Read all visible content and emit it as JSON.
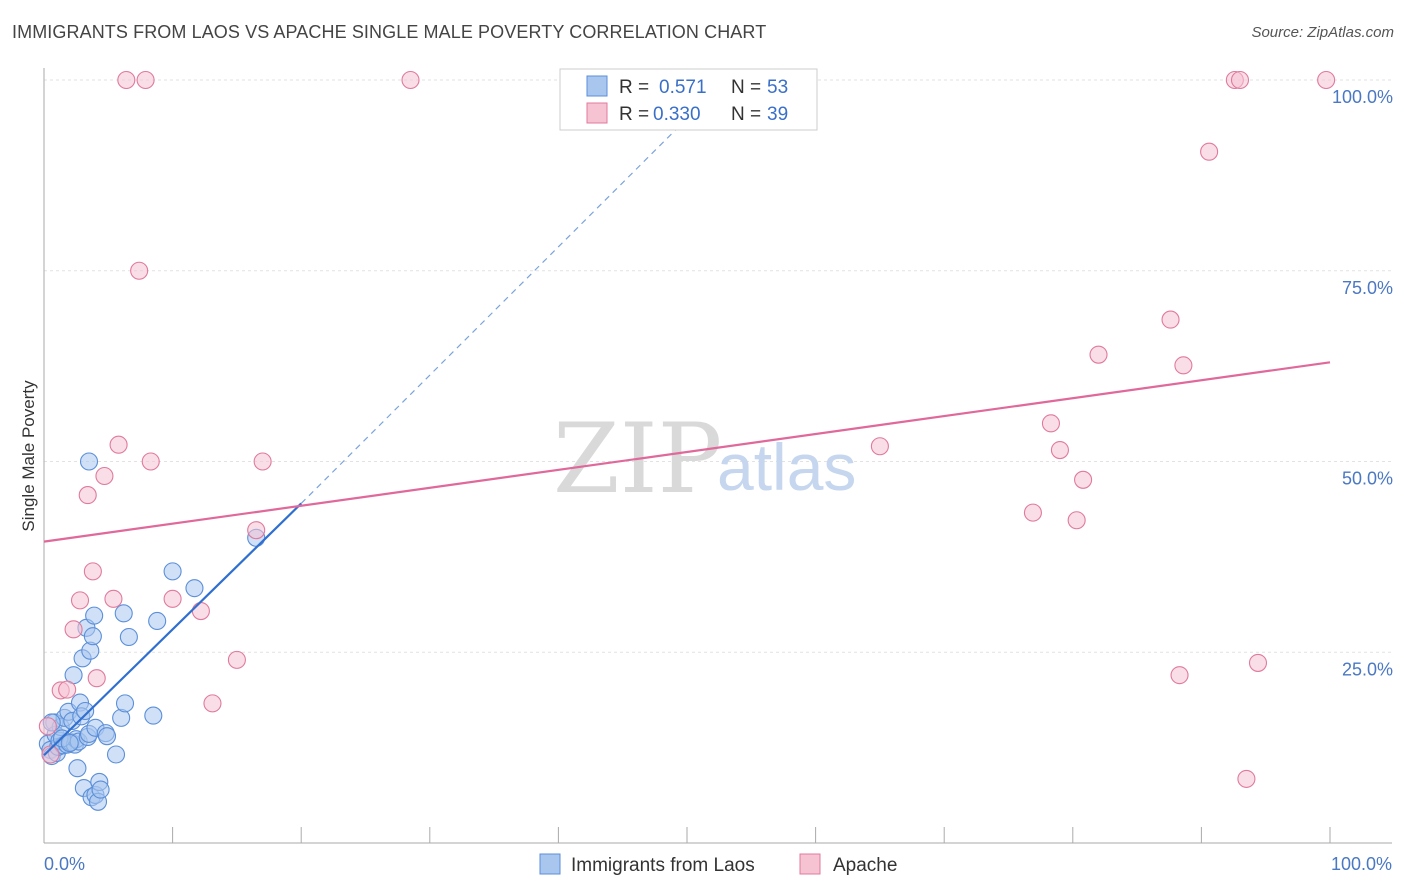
{
  "title": "IMMIGRANTS FROM LAOS VS APACHE SINGLE MALE POVERTY CORRELATION CHART",
  "source": "Source: ZipAtlas.com",
  "chart_data": {
    "type": "scatter",
    "ylabel": "Single Male Poverty",
    "xlim": [
      0,
      100
    ],
    "ylim": [
      0,
      100
    ],
    "x_tick_labels": [
      "0.0%",
      "100.0%"
    ],
    "y_ticks": [
      25,
      50,
      75,
      100
    ],
    "y_tick_labels": [
      "25.0%",
      "50.0%",
      "75.0%",
      "100.0%"
    ],
    "grid": true,
    "watermark": [
      "ZIP",
      "atlas"
    ],
    "legend": {
      "r_label": "R =",
      "n_label": "N =",
      "rows": [
        {
          "series": "Immigrants from Laos",
          "r": "0.571",
          "n": "53"
        },
        {
          "series": "Apache",
          "r": "0.330",
          "n": "39"
        }
      ]
    },
    "series": [
      {
        "name": "Immigrants from Laos",
        "color": "#5b8fd9",
        "fill": "#a9c6ee",
        "trend": {
          "x0": 0,
          "y0": 11.5,
          "x1": 20,
          "y1": 44.5,
          "dash_to_x": 53,
          "dash_to_y": 100
        },
        "points": [
          [
            0.3,
            13.0
          ],
          [
            0.5,
            12.2
          ],
          [
            0.6,
            11.4
          ],
          [
            0.8,
            15.8
          ],
          [
            0.9,
            14.2
          ],
          [
            1.0,
            11.8
          ],
          [
            1.1,
            12.6
          ],
          [
            1.2,
            13.4
          ],
          [
            1.3,
            15.2
          ],
          [
            1.5,
            12.8
          ],
          [
            1.6,
            16.4
          ],
          [
            1.8,
            12.9
          ],
          [
            1.9,
            17.2
          ],
          [
            2.1,
            13.2
          ],
          [
            2.2,
            16.0
          ],
          [
            2.3,
            22.0
          ],
          [
            2.4,
            12.9
          ],
          [
            2.5,
            13.6
          ],
          [
            2.6,
            9.8
          ],
          [
            2.7,
            13.3
          ],
          [
            2.8,
            18.4
          ],
          [
            2.9,
            16.6
          ],
          [
            3.0,
            24.2
          ],
          [
            3.1,
            7.2
          ],
          [
            3.2,
            17.3
          ],
          [
            3.3,
            28.2
          ],
          [
            3.4,
            13.9
          ],
          [
            3.5,
            14.3
          ],
          [
            3.6,
            25.2
          ],
          [
            3.7,
            6.0
          ],
          [
            3.8,
            27.1
          ],
          [
            3.9,
            29.8
          ],
          [
            4.0,
            15.1
          ],
          [
            3.5,
            50.0
          ],
          [
            4.0,
            6.3
          ],
          [
            4.2,
            5.4
          ],
          [
            4.3,
            8.0
          ],
          [
            4.4,
            7.0
          ],
          [
            4.8,
            14.4
          ],
          [
            4.9,
            14.0
          ],
          [
            5.6,
            11.6
          ],
          [
            6.0,
            16.4
          ],
          [
            6.2,
            30.1
          ],
          [
            6.3,
            18.3
          ],
          [
            6.6,
            27.0
          ],
          [
            8.5,
            16.7
          ],
          [
            8.8,
            29.1
          ],
          [
            10.0,
            35.6
          ],
          [
            11.7,
            33.4
          ],
          [
            16.5,
            40.0
          ],
          [
            0.6,
            15.8
          ],
          [
            1.4,
            13.7
          ],
          [
            2.0,
            13.1
          ]
        ]
      },
      {
        "name": "Apache",
        "color": "#e07a9c",
        "fill": "#f6c3d3",
        "trend": {
          "x0": 0,
          "y0": 39.5,
          "x1": 100,
          "y1": 63.0
        },
        "points": [
          [
            0.3,
            15.3
          ],
          [
            0.5,
            11.6
          ],
          [
            1.3,
            20.0
          ],
          [
            1.8,
            20.1
          ],
          [
            2.3,
            28.0
          ],
          [
            2.8,
            31.8
          ],
          [
            3.4,
            45.6
          ],
          [
            3.8,
            35.6
          ],
          [
            4.1,
            21.6
          ],
          [
            4.7,
            48.1
          ],
          [
            5.4,
            32.0
          ],
          [
            5.8,
            52.2
          ],
          [
            6.4,
            100
          ],
          [
            7.4,
            75.0
          ],
          [
            7.9,
            100
          ],
          [
            8.3,
            50.0
          ],
          [
            10.0,
            32.0
          ],
          [
            12.2,
            30.4
          ],
          [
            13.1,
            18.3
          ],
          [
            15.0,
            24.0
          ],
          [
            16.5,
            41.0
          ],
          [
            17.0,
            50.0
          ],
          [
            28.5,
            100
          ],
          [
            65.0,
            52.0
          ],
          [
            76.9,
            43.3
          ],
          [
            78.3,
            55.0
          ],
          [
            79.0,
            51.5
          ],
          [
            80.3,
            42.3
          ],
          [
            80.8,
            47.6
          ],
          [
            82.0,
            64.0
          ],
          [
            87.6,
            68.6
          ],
          [
            88.3,
            22.0
          ],
          [
            88.6,
            62.6
          ],
          [
            90.6,
            90.6
          ],
          [
            92.6,
            100
          ],
          [
            93.0,
            100
          ],
          [
            93.5,
            8.4
          ],
          [
            94.4,
            23.6
          ],
          [
            99.7,
            100
          ]
        ]
      }
    ]
  },
  "bottom_legend": {
    "items": [
      "Immigrants from Laos",
      "Apache"
    ]
  }
}
